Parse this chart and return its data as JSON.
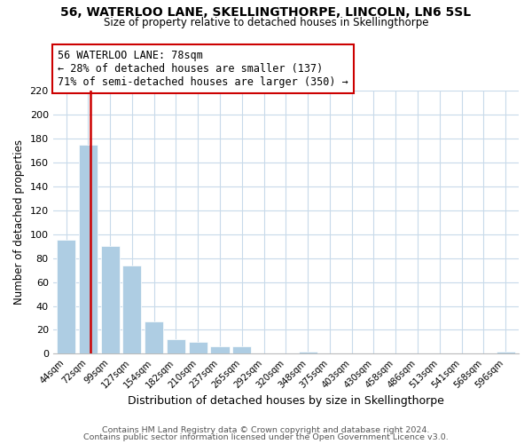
{
  "title": "56, WATERLOO LANE, SKELLINGTHORPE, LINCOLN, LN6 5SL",
  "subtitle": "Size of property relative to detached houses in Skellingthorpe",
  "xlabel": "Distribution of detached houses by size in Skellingthorpe",
  "ylabel": "Number of detached properties",
  "bar_labels": [
    "44sqm",
    "72sqm",
    "99sqm",
    "127sqm",
    "154sqm",
    "182sqm",
    "210sqm",
    "237sqm",
    "265sqm",
    "292sqm",
    "320sqm",
    "348sqm",
    "375sqm",
    "403sqm",
    "430sqm",
    "458sqm",
    "486sqm",
    "513sqm",
    "541sqm",
    "568sqm",
    "596sqm"
  ],
  "bar_values": [
    95,
    175,
    90,
    74,
    27,
    12,
    10,
    6,
    6,
    0,
    0,
    2,
    0,
    0,
    0,
    0,
    0,
    0,
    0,
    0,
    2
  ],
  "bar_color": "#aecde3",
  "bar_edge_color": "#ffffff",
  "highlight_color": "#cc0000",
  "highlight_bar_index": 1,
  "annotation_title": "56 WATERLOO LANE: 78sqm",
  "annotation_line1": "← 28% of detached houses are smaller (137)",
  "annotation_line2": "71% of semi-detached houses are larger (350) →",
  "annotation_box_color": "#ffffff",
  "annotation_box_edge_color": "#cc0000",
  "ylim": [
    0,
    220
  ],
  "yticks": [
    0,
    20,
    40,
    60,
    80,
    100,
    120,
    140,
    160,
    180,
    200,
    220
  ],
  "footer_line1": "Contains HM Land Registry data © Crown copyright and database right 2024.",
  "footer_line2": "Contains public sector information licensed under the Open Government Licence v3.0.",
  "background_color": "#ffffff",
  "grid_color": "#c8daea"
}
